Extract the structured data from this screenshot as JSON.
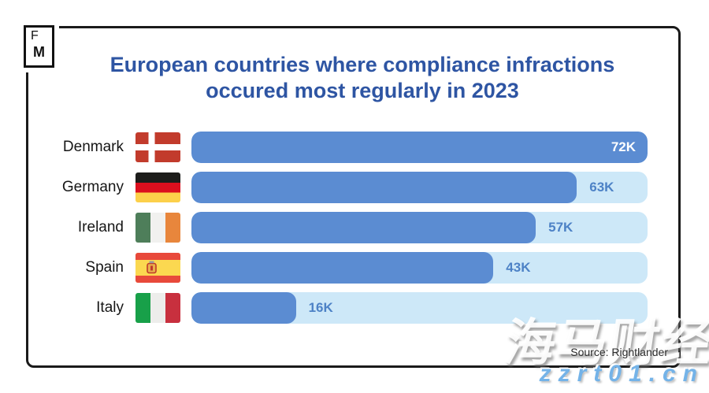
{
  "logo": {
    "top": "F",
    "bottom": "M"
  },
  "title": {
    "line1": "European countries where compliance infractions",
    "line2": "occured most regularly in 2023"
  },
  "source": {
    "text": "Source: Rightlander"
  },
  "watermark": {
    "chinese": "海马财经",
    "url": "zzrt01.cn"
  },
  "colors": {
    "title": "#2e55a3",
    "bar_fill": "#5b8cd2",
    "bar_track": "#cde8f8",
    "value_text": "#4d82c6",
    "value_text_on_bar": "#ffffff",
    "frame_border": "#1a1a1a",
    "watermark_url": "#74b3e8"
  },
  "chart_data": {
    "type": "bar",
    "orientation": "horizontal",
    "title": "European countries where compliance infractions occured most regularly in 2023",
    "categories": [
      "Denmark",
      "Germany",
      "Ireland",
      "Spain",
      "Italy"
    ],
    "values": [
      72000,
      63000,
      57000,
      43000,
      16000
    ],
    "value_labels": [
      "72K",
      "63K",
      "57K",
      "43K",
      "16K"
    ],
    "xlim": [
      0,
      72000
    ],
    "grid": false,
    "legend": false,
    "source": "Source: Rightlander",
    "rows": [
      {
        "country": "Denmark",
        "flag": "denmark",
        "value": 72000,
        "label": "72K",
        "value_label_inside": true,
        "bar_fraction": 1.0
      },
      {
        "country": "Germany",
        "flag": "germany",
        "value": 63000,
        "label": "63K",
        "value_label_inside": false,
        "bar_fraction": 0.845
      },
      {
        "country": "Ireland",
        "flag": "ireland",
        "value": 57000,
        "label": "57K",
        "value_label_inside": false,
        "bar_fraction": 0.755
      },
      {
        "country": "Spain",
        "flag": "spain",
        "value": 43000,
        "label": "43K",
        "value_label_inside": false,
        "bar_fraction": 0.662
      },
      {
        "country": "Italy",
        "flag": "italy",
        "value": 16000,
        "label": "16K",
        "value_label_inside": false,
        "bar_fraction": 0.229
      }
    ]
  }
}
